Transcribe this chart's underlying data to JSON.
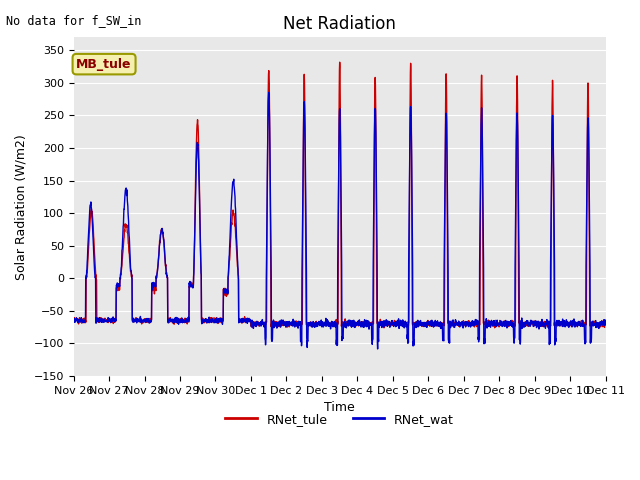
{
  "title": "Net Radiation",
  "ylabel": "Solar Radiation (W/m2)",
  "xlabel": "Time",
  "ylim": [
    -150,
    370
  ],
  "yticks": [
    -150,
    -100,
    -50,
    0,
    50,
    100,
    150,
    200,
    250,
    300,
    350
  ],
  "bg_color": "#e8e8e8",
  "line_color_tule": "#cc0000",
  "line_color_wat": "#0000cc",
  "legend_label_tule": "RNet_tule",
  "legend_label_wat": "RNet_wat",
  "no_data_text": "No data for f_SW_in",
  "mb_label": "MB_tule",
  "title_fontsize": 12,
  "label_fontsize": 9,
  "tick_fontsize": 8,
  "linewidth": 1.0,
  "xtick_labels": [
    "Nov 26",
    "Nov 27",
    "Nov 28",
    "Nov 29",
    "Nov 30",
    "Dec 1",
    "Dec 2",
    "Dec 3",
    "Dec 4",
    "Dec 5",
    "Dec 6",
    "Dec 7",
    "Dec 8",
    "Dec 9",
    "Dec 10",
    "Dec 11"
  ],
  "n_points_per_day": 144
}
